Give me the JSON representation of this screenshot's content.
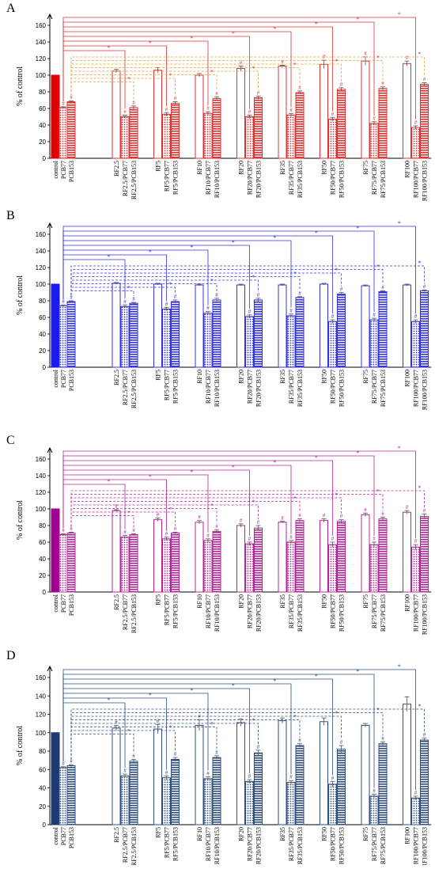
{
  "figure": {
    "ylabel": "% of control",
    "sig_star": "*",
    "sig_hash": "#"
  },
  "chart_data": [
    {
      "panel": "A",
      "type": "bar",
      "ylabel": "% of control",
      "ylim": [
        0,
        160
      ],
      "yticks": [
        0,
        20,
        40,
        60,
        80,
        100,
        120,
        140,
        160
      ],
      "color": "#dd3333",
      "control_color": "#e00000",
      "control": {
        "labels": [
          "control",
          "PCB77",
          "PCB153"
        ],
        "values": [
          100,
          61,
          68
        ],
        "errors": [
          0,
          1,
          1
        ]
      },
      "groups": [
        {
          "labels": [
            "RF2.5",
            "RF2.5/PCB77",
            "RF2.5/PCB153"
          ],
          "values": [
            105,
            50,
            61
          ],
          "errors": [
            2,
            2,
            2
          ]
        },
        {
          "labels": [
            "RF5",
            "RF5/PCB77",
            "RF5/PCB153"
          ],
          "values": [
            106,
            53,
            66
          ],
          "errors": [
            3,
            2,
            2
          ]
        },
        {
          "labels": [
            "RF10",
            "RF10/PCB77",
            "RF10/PCB153"
          ],
          "values": [
            100,
            54,
            72
          ],
          "errors": [
            2,
            2,
            2
          ]
        },
        {
          "labels": [
            "RF20",
            "RF20/PCB77",
            "RF20/PCB153"
          ],
          "values": [
            108,
            50,
            73
          ],
          "errors": [
            3,
            2,
            2
          ]
        },
        {
          "labels": [
            "RF35",
            "RF35/PCB77",
            "RF35/PCB153"
          ],
          "values": [
            111,
            52,
            79
          ],
          "errors": [
            1,
            2,
            2
          ]
        },
        {
          "labels": [
            "RF50",
            "RF50/PCB77",
            "RF50/PCB153"
          ],
          "values": [
            113,
            47,
            83
          ],
          "errors": [
            5,
            2,
            2
          ]
        },
        {
          "labels": [
            "RF75",
            "RF75/PCB77",
            "RF75/PCB153"
          ],
          "values": [
            117,
            42,
            84
          ],
          "errors": [
            5,
            2,
            2
          ]
        },
        {
          "labels": [
            "RF100",
            "RF100/PCB77",
            "RF100/PCB153"
          ],
          "values": [
            114,
            37,
            89
          ],
          "errors": [
            3,
            2,
            2
          ]
        }
      ]
    },
    {
      "panel": "B",
      "type": "bar",
      "ylabel": "% of control",
      "ylim": [
        0,
        160
      ],
      "yticks": [
        0,
        20,
        40,
        60,
        80,
        100,
        120,
        140,
        160
      ],
      "color": "#3333dd",
      "control_color": "#1a1aee",
      "control": {
        "labels": [
          "control",
          "PCB77",
          "PCB153"
        ],
        "values": [
          100,
          74,
          79
        ],
        "errors": [
          0,
          1,
          1
        ]
      },
      "groups": [
        {
          "labels": [
            "RF2.5",
            "RF2.5/PCB77",
            "RF2.5/PCB153"
          ],
          "values": [
            101,
            73,
            77
          ],
          "errors": [
            1,
            2,
            1
          ]
        },
        {
          "labels": [
            "RF5",
            "RF5/PCB77",
            "RF5/PCB153"
          ],
          "values": [
            100,
            70,
            79
          ],
          "errors": [
            1,
            2,
            2
          ]
        },
        {
          "labels": [
            "RF10",
            "RF10/PCB77",
            "RF10/PCB153"
          ],
          "values": [
            99,
            65,
            81
          ],
          "errors": [
            1,
            2,
            2
          ]
        },
        {
          "labels": [
            "RF20",
            "RF20/PCB77",
            "RF20/PCB153"
          ],
          "values": [
            99,
            61,
            81
          ],
          "errors": [
            1,
            2,
            2
          ]
        },
        {
          "labels": [
            "RF35",
            "RF35/PCB77",
            "RF35/PCB153"
          ],
          "values": [
            99,
            62,
            84
          ],
          "errors": [
            1,
            2,
            1
          ]
        },
        {
          "labels": [
            "RF50",
            "RF50/PCB77",
            "RF50/PCB153"
          ],
          "values": [
            100,
            55,
            88
          ],
          "errors": [
            1,
            2,
            2
          ]
        },
        {
          "labels": [
            "RF75",
            "RF75/PCB77",
            "RF75/PCB153"
          ],
          "values": [
            98,
            57,
            91
          ],
          "errors": [
            1,
            2,
            1
          ]
        },
        {
          "labels": [
            "RF100",
            "RF100/PCB77",
            "RF100/PCB153"
          ],
          "values": [
            99,
            55,
            92
          ],
          "errors": [
            1,
            2,
            1
          ]
        }
      ]
    },
    {
      "panel": "C",
      "type": "bar",
      "ylabel": "% of control",
      "ylim": [
        0,
        160
      ],
      "yticks": [
        0,
        20,
        40,
        60,
        80,
        100,
        120,
        140,
        160
      ],
      "color": "#b0269a",
      "control_color": "#a00090",
      "control": {
        "labels": [
          "control",
          "PCB77",
          "PCB153"
        ],
        "values": [
          100,
          69,
          71
        ],
        "errors": [
          0,
          1,
          1
        ]
      },
      "groups": [
        {
          "labels": [
            "RF2.5",
            "RF2.5/PCB77",
            "RF2.5/PCB153"
          ],
          "values": [
            98,
            66,
            69
          ],
          "errors": [
            1,
            2,
            1
          ]
        },
        {
          "labels": [
            "RF5",
            "RF5/PCB77",
            "RF5/PCB153"
          ],
          "values": [
            87,
            64,
            71
          ],
          "errors": [
            2,
            2,
            1
          ]
        },
        {
          "labels": [
            "RF10",
            "RF10/PCB77",
            "RF10/PCB153"
          ],
          "values": [
            84,
            62,
            73
          ],
          "errors": [
            2,
            2,
            2
          ]
        },
        {
          "labels": [
            "RF20",
            "RF20/PCB77",
            "RF20/PCB153"
          ],
          "values": [
            80,
            58,
            77
          ],
          "errors": [
            2,
            2,
            3
          ]
        },
        {
          "labels": [
            "RF35",
            "RF35/PCB77",
            "RF35/PCB153"
          ],
          "values": [
            84,
            60,
            86
          ],
          "errors": [
            1,
            2,
            2
          ]
        },
        {
          "labels": [
            "RF50",
            "RF50/PCB77",
            "RF50/PCB153"
          ],
          "values": [
            86,
            57,
            85
          ],
          "errors": [
            2,
            3,
            2
          ]
        },
        {
          "labels": [
            "RF75",
            "RF75/PCB77",
            "RF75/PCB153"
          ],
          "values": [
            93,
            57,
            88
          ],
          "errors": [
            2,
            3,
            2
          ]
        },
        {
          "labels": [
            "RF100",
            "RF100/PCB77",
            "RF100/PCB153"
          ],
          "values": [
            96,
            54,
            91
          ],
          "errors": [
            2,
            3,
            3
          ]
        }
      ]
    },
    {
      "panel": "D",
      "type": "bar",
      "ylabel": "% of control",
      "ylim": [
        0,
        160
      ],
      "yticks": [
        0,
        20,
        40,
        60,
        80,
        100,
        120,
        140,
        160
      ],
      "color": "#2e4e80",
      "control_color": "#1f3a73",
      "control": {
        "labels": [
          "control",
          "PCB77",
          "PCB153"
        ],
        "values": [
          100,
          62,
          64
        ],
        "errors": [
          0,
          1,
          1
        ]
      },
      "groups": [
        {
          "labels": [
            "RF2.5",
            "RF2.5/PCB77",
            "RF2.5/PCB153"
          ],
          "values": [
            105,
            53,
            69
          ],
          "errors": [
            3,
            2,
            2
          ]
        },
        {
          "labels": [
            "RF5",
            "RF5/PCB77",
            "RF5/PCB153"
          ],
          "values": [
            104,
            51,
            71
          ],
          "errors": [
            5,
            2,
            2
          ]
        },
        {
          "labels": [
            "RF10",
            "RF10/PCB77",
            "RF10/PCB153"
          ],
          "values": [
            108,
            50,
            73
          ],
          "errors": [
            6,
            2,
            2
          ]
        },
        {
          "labels": [
            "RF20",
            "RF20/PCB77",
            "RF20/PCB153"
          ],
          "values": [
            111,
            47,
            78
          ],
          "errors": [
            4,
            2,
            3
          ]
        },
        {
          "labels": [
            "RF35",
            "RF35/PCB77",
            "RF35/PCB153"
          ],
          "values": [
            113,
            46,
            86
          ],
          "errors": [
            3,
            2,
            2
          ]
        },
        {
          "labels": [
            "RF50",
            "RF50/PCB77",
            "RF50/PCB153"
          ],
          "values": [
            112,
            44,
            82
          ],
          "errors": [
            4,
            3,
            4
          ]
        },
        {
          "labels": [
            "RF75",
            "RF75/PCB77",
            "RF75/PCB153"
          ],
          "values": [
            108,
            31,
            88
          ],
          "errors": [
            2,
            2,
            2
          ]
        },
        {
          "labels": [
            "RF100",
            "RF100/PCB77",
            "RF100/PCB153"
          ],
          "values": [
            131,
            29,
            92
          ],
          "errors": [
            8,
            2,
            2
          ]
        }
      ]
    }
  ]
}
